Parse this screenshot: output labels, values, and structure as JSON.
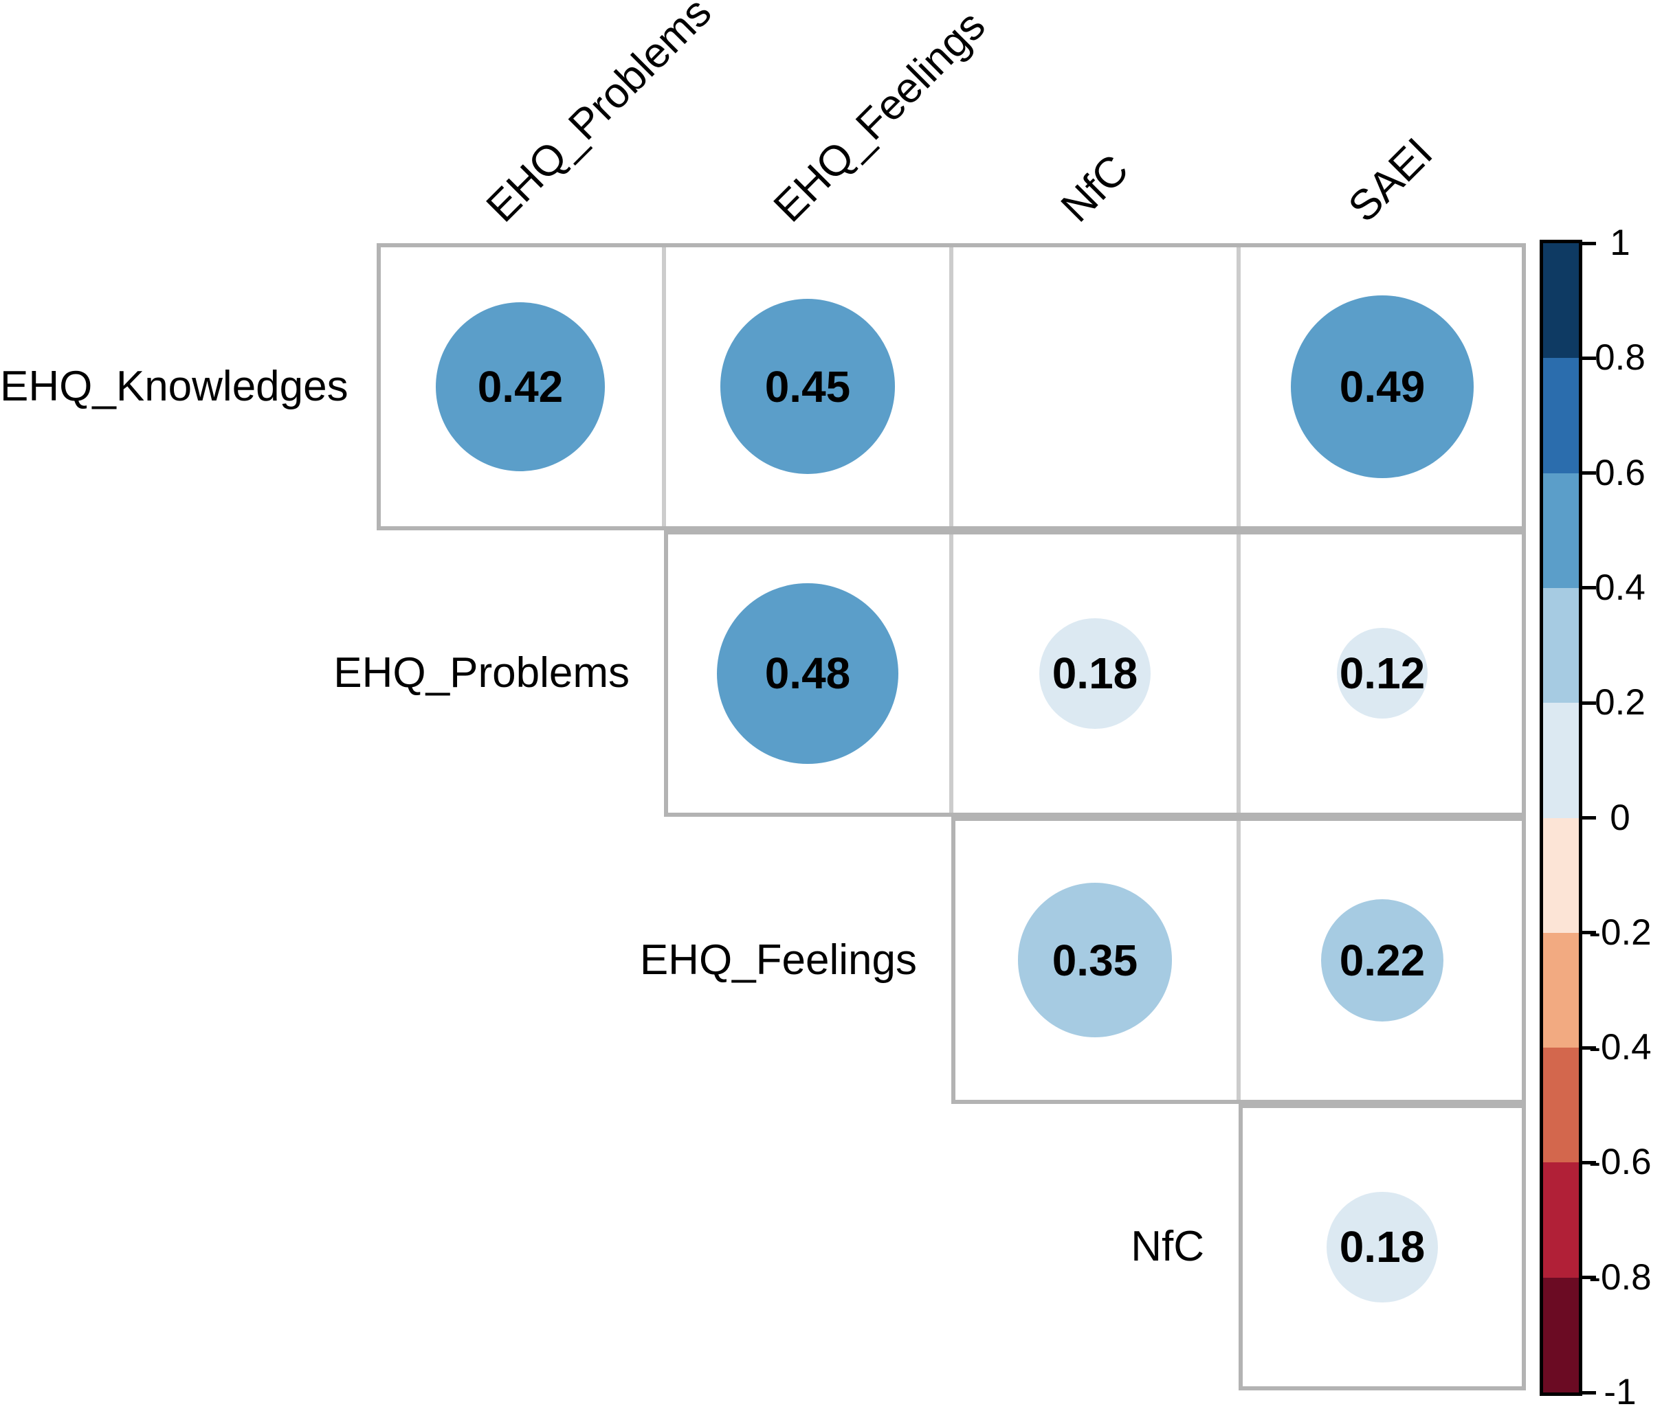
{
  "chart_data": {
    "type": "heatmap",
    "subtype": "correlogram-upper-triangle-circles",
    "title": "",
    "rows": [
      "EHQ_Knowledges",
      "EHQ_Problems",
      "EHQ_Feelings",
      "NfC"
    ],
    "columns": [
      "EHQ_Problems",
      "EHQ_Feelings",
      "NfC",
      "SAEI"
    ],
    "cells": [
      {
        "row": "EHQ_Knowledges",
        "col": "EHQ_Problems",
        "value": 0.42
      },
      {
        "row": "EHQ_Knowledges",
        "col": "EHQ_Feelings",
        "value": 0.45
      },
      {
        "row": "EHQ_Knowledges",
        "col": "NfC",
        "value": null
      },
      {
        "row": "EHQ_Knowledges",
        "col": "SAEI",
        "value": 0.49
      },
      {
        "row": "EHQ_Problems",
        "col": "EHQ_Feelings",
        "value": 0.48
      },
      {
        "row": "EHQ_Problems",
        "col": "NfC",
        "value": 0.18
      },
      {
        "row": "EHQ_Problems",
        "col": "SAEI",
        "value": 0.12
      },
      {
        "row": "EHQ_Feelings",
        "col": "NfC",
        "value": 0.35
      },
      {
        "row": "EHQ_Feelings",
        "col": "SAEI",
        "value": 0.22
      },
      {
        "row": "NfC",
        "col": "SAEI",
        "value": 0.18
      }
    ],
    "encoding": {
      "size": "circle radius proportional to sqrt(|r|)",
      "color": "correlation binned to 10 steps of 0.2 on RdBu palette",
      "empty_cell_meaning": "no circle shown for EHQ_Knowledges x NfC"
    },
    "palette_from_minus1_to_plus1": [
      "#6b0b23",
      "#b12037",
      "#d3674d",
      "#f2aa81",
      "#fce4d6",
      "#dce9f2",
      "#a6cbe2",
      "#5b9ec9",
      "#2b6dad",
      "#0e3a63"
    ],
    "legend": {
      "position": "right",
      "min": -1,
      "max": 1,
      "ticks": [
        "1",
        "0.8",
        "0.6",
        "0.4",
        "0.2",
        "0",
        "-0.2",
        "-0.4",
        "-0.6",
        "-0.8",
        "-1"
      ]
    },
    "grid": true,
    "grid_line_color": "#cccccc",
    "grid_outline_color": "#b3b3b3",
    "background": "#ffffff"
  }
}
